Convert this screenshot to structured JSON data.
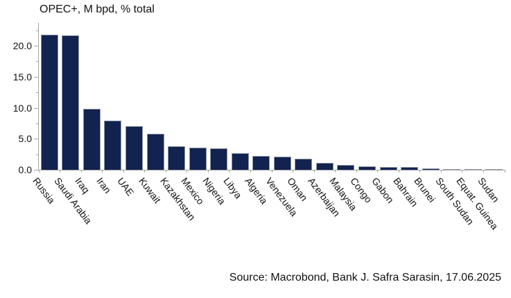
{
  "title": "OPEC+, M bpd, % total",
  "source": "Source: Macrobond, Bank J. Safra Sarasin, 17.06.2025",
  "colors": {
    "bar": "#122350",
    "axis": "#a6a6a6",
    "text": "#111111",
    "background": "#ffffff"
  },
  "chart_data": {
    "type": "bar",
    "title": "OPEC+, M bpd, % total",
    "categories": [
      "Russia",
      "Saudi Arabia",
      "Iraq",
      "Iran",
      "UAE",
      "Kuwait",
      "Kazakhstan",
      "Mexico",
      "Nigeria",
      "Libya",
      "Algeria",
      "Venezuela",
      "Oman",
      "Azerbaijan",
      "Malaysia",
      "Congo",
      "Gabon",
      "Bahrain",
      "Brunei",
      "South Sudan",
      "Equat. Guinea",
      "Sudan"
    ],
    "values": [
      21.8,
      21.7,
      9.8,
      7.9,
      7.1,
      5.8,
      3.8,
      3.6,
      3.5,
      2.7,
      2.2,
      2.1,
      1.8,
      1.1,
      0.8,
      0.6,
      0.5,
      0.4,
      0.2,
      0.15,
      0.1,
      0.05
    ],
    "xlabel": "",
    "ylabel": "",
    "ylim": [
      0,
      23.7
    ],
    "y_major_ticks": [
      0,
      5,
      10,
      15,
      20
    ],
    "y_major_tick_labels": [
      "0.0",
      "5.0",
      "10.0",
      "15.0",
      "20.0"
    ],
    "y_minor_ticks": [
      2.5,
      7.5,
      12.5,
      17.5,
      22.5
    ],
    "grid": false,
    "legend_position": "none",
    "bar_orientation": "vertical",
    "x_label_rotation_deg": 53
  }
}
